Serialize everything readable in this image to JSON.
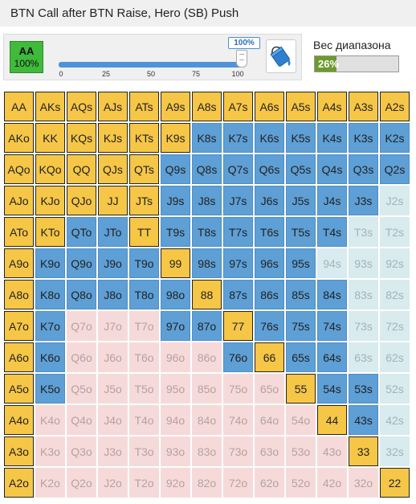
{
  "title": "BTN Call after BTN Raise, Hero (SB) Push",
  "selected_hand": {
    "name": "AA",
    "percent": "100%"
  },
  "slider": {
    "badge": "100%",
    "value": 100,
    "ticks": [
      "0",
      "25",
      "50",
      "75",
      "100"
    ]
  },
  "paint_button_icon": "paint-bucket-icon",
  "range_weight": {
    "label": "Вес диапазона",
    "value_text": "26%",
    "value": 26
  },
  "colors": {
    "push": "#f6c646",
    "call": "#5e9fd5",
    "fold_offsuit": "#f6dada",
    "fold_suited": "#d8ebee",
    "hand_selected": "#3fba3b",
    "weight_bar": "#6d9a2b",
    "slider_fill": "#4f93d8"
  },
  "legend_states": {
    "P": "push",
    "C": "call",
    "F": "fold"
  },
  "grid": {
    "rows": [
      [
        "AA",
        "AKs",
        "AQs",
        "AJs",
        "ATs",
        "A9s",
        "A8s",
        "A7s",
        "A6s",
        "A5s",
        "A4s",
        "A3s",
        "A2s"
      ],
      [
        "AKo",
        "KK",
        "KQs",
        "KJs",
        "KTs",
        "K9s",
        "K8s",
        "K7s",
        "K6s",
        "K5s",
        "K4s",
        "K3s",
        "K2s"
      ],
      [
        "AQo",
        "KQo",
        "QQ",
        "QJs",
        "QTs",
        "Q9s",
        "Q8s",
        "Q7s",
        "Q6s",
        "Q5s",
        "Q4s",
        "Q3s",
        "Q2s"
      ],
      [
        "AJo",
        "KJo",
        "QJo",
        "JJ",
        "JTs",
        "J9s",
        "J8s",
        "J7s",
        "J6s",
        "J5s",
        "J4s",
        "J3s",
        "J2s"
      ],
      [
        "ATo",
        "KTo",
        "QTo",
        "JTo",
        "TT",
        "T9s",
        "T8s",
        "T7s",
        "T6s",
        "T5s",
        "T4s",
        "T3s",
        "T2s"
      ],
      [
        "A9o",
        "K9o",
        "Q9o",
        "J9o",
        "T9o",
        "99",
        "98s",
        "97s",
        "96s",
        "95s",
        "94s",
        "93s",
        "92s"
      ],
      [
        "A8o",
        "K8o",
        "Q8o",
        "J8o",
        "T8o",
        "98o",
        "88",
        "87s",
        "86s",
        "85s",
        "84s",
        "83s",
        "82s"
      ],
      [
        "A7o",
        "K7o",
        "Q7o",
        "J7o",
        "T7o",
        "97o",
        "87o",
        "77",
        "76s",
        "75s",
        "74s",
        "73s",
        "72s"
      ],
      [
        "A6o",
        "K6o",
        "Q6o",
        "J6o",
        "T6o",
        "96o",
        "86o",
        "76o",
        "66",
        "65s",
        "64s",
        "63s",
        "62s"
      ],
      [
        "A5o",
        "K5o",
        "Q5o",
        "J5o",
        "T5o",
        "95o",
        "85o",
        "75o",
        "65o",
        "55",
        "54s",
        "53s",
        "52s"
      ],
      [
        "A4o",
        "K4o",
        "Q4o",
        "J4o",
        "T4o",
        "94o",
        "84o",
        "74o",
        "64o",
        "54o",
        "44",
        "43s",
        "42s"
      ],
      [
        "A3o",
        "K3o",
        "Q3o",
        "J3o",
        "T3o",
        "93o",
        "83o",
        "73o",
        "63o",
        "53o",
        "43o",
        "33",
        "32s"
      ],
      [
        "A2o",
        "K2o",
        "Q2o",
        "J2o",
        "T2o",
        "92o",
        "82o",
        "72o",
        "62o",
        "52o",
        "42o",
        "32o",
        "22"
      ]
    ],
    "states": [
      "PPPPPPPPPPPPP",
      "PPPPPPCCCCCCC",
      "PPPPPCCCCCCCC",
      "PPPPPCCCCCCCF",
      "PPCCPCCCCCCFF",
      "PCCCCPCCCCFFF",
      "PCCCCCPCCCCFF",
      "PCFFFCCPCCCFF",
      "PCFFFFFCPCCFF",
      "PCFFFFFFFPCCF",
      "PFFFFFFFFFPCF",
      "PFFFFFFFFFFPF",
      "PFFFFFFFFFFFP"
    ]
  }
}
